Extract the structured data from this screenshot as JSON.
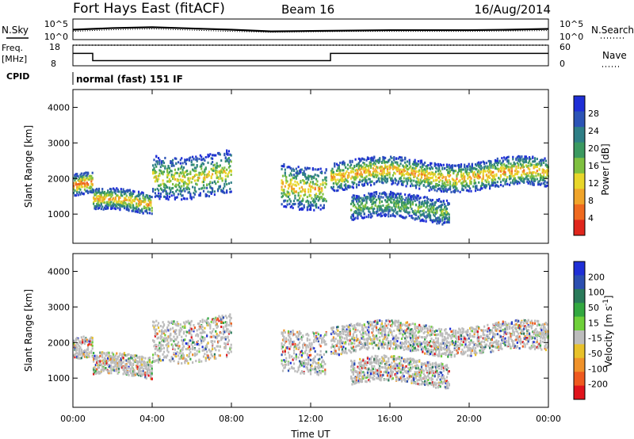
{
  "header": {
    "title": "Fort Hays East (fitACF)",
    "beam": "Beam 16",
    "date": "16/Aug/2014"
  },
  "status_panels": {
    "nsky_label": "N.Sky",
    "nsearch_label": "N.Search",
    "noise_ticks_left": [
      "10^5",
      "10^0"
    ],
    "noise_ticks_right": [
      "10^5",
      "10^0"
    ],
    "freq_label": "Freq.",
    "freq_unit": "[MHz]",
    "freq_ticks": [
      "18",
      "8"
    ],
    "nave_label": "Nave",
    "nave_ticks": [
      "60",
      "0"
    ],
    "cpid_label": "CPID",
    "cpid_text": "normal (fast) 151 IF"
  },
  "colors": {
    "power_scale": [
      "#1f2fd6",
      "#2c54b6",
      "#2f7f86",
      "#3b9960",
      "#7fc040",
      "#e8d62a",
      "#f0a42a",
      "#ef6a1f",
      "#e0261c"
    ],
    "velocity_scale": [
      "#1f2fd6",
      "#2c4fb0",
      "#2a7a5a",
      "#33a840",
      "#6fd03a",
      "#bcbcbc",
      "#e8c12a",
      "#f0922a",
      "#ef5a1f",
      "#e0141c"
    ],
    "ground_scatter": "#bcbcbc"
  },
  "chart_data": [
    {
      "type": "line",
      "title": "N.Sky / N.Search",
      "x": [
        0,
        2,
        4,
        6,
        8,
        10,
        12,
        14,
        16,
        18,
        20,
        22,
        24
      ],
      "series": [
        {
          "name": "N.Sky",
          "values": [
            2.4,
            2.8,
            3.0,
            2.7,
            2.4,
            2.0,
            2.1,
            2.2,
            2.3,
            2.3,
            2.3,
            2.4,
            2.6
          ]
        },
        {
          "name": "N.Search",
          "values": [
            2.0,
            2.4,
            2.6,
            2.3,
            2.0,
            1.8,
            1.9,
            2.0,
            2.0,
            2.0,
            2.0,
            2.1,
            2.2
          ]
        }
      ],
      "ylim": [
        0,
        5
      ]
    },
    {
      "type": "line",
      "title": "Freq. / Nave",
      "x": [
        0,
        1,
        1,
        13,
        13,
        24
      ],
      "series": [
        {
          "name": "Freq.",
          "values": [
            14,
            14,
            10.5,
            10.5,
            14,
            14
          ]
        },
        {
          "name": "Nave",
          "values": [
            18,
            18,
            18,
            18,
            18,
            18
          ]
        }
      ],
      "ylim": [
        8,
        18
      ]
    },
    {
      "type": "heatmap",
      "title": "Power",
      "xlabel": "Time UT",
      "ylabel": "Slant Range [km]",
      "x_ticks": [
        "00:00",
        "04:00",
        "08:00",
        "12:00",
        "16:00",
        "20:00",
        "00:00"
      ],
      "y_ticks": [
        "1000",
        "2000",
        "3000",
        "4000"
      ],
      "colorbar_label": "Power [dB]",
      "colorbar_ticks": [
        "28",
        "24",
        "20",
        "16",
        "12",
        "8",
        "4"
      ],
      "xlim": [
        0,
        24
      ],
      "ylim": [
        180,
        4500
      ],
      "echo_bands": [
        {
          "t": [
            0,
            1
          ],
          "r": [
            1500,
            2100
          ],
          "peak": 26
        },
        {
          "t": [
            1,
            4
          ],
          "r": [
            1000,
            1600
          ],
          "peak": 22
        },
        {
          "t": [
            4,
            8
          ],
          "r": [
            1500,
            2700
          ],
          "peak": 18
        },
        {
          "t": [
            10.5,
            12.8
          ],
          "r": [
            1200,
            2400
          ],
          "peak": 20
        },
        {
          "t": [
            13,
            24
          ],
          "r": [
            1700,
            2500
          ],
          "peak": 22
        },
        {
          "t": [
            14,
            19
          ],
          "r": [
            800,
            1500
          ],
          "peak": 14
        }
      ]
    },
    {
      "type": "heatmap",
      "title": "Velocity",
      "xlabel": "Time UT",
      "ylabel": "Slant Range [km]",
      "x_ticks": [
        "00:00",
        "04:00",
        "08:00",
        "12:00",
        "16:00",
        "20:00",
        "00:00"
      ],
      "y_ticks": [
        "1000",
        "2000",
        "3000",
        "4000"
      ],
      "colorbar_label": "Velocity [m s^-1]",
      "colorbar_ticks": [
        "200",
        "100",
        "50",
        "15",
        "-15",
        "-50",
        "-100",
        "-200"
      ],
      "xlim": [
        0,
        24
      ],
      "ylim": [
        180,
        4500
      ]
    }
  ]
}
